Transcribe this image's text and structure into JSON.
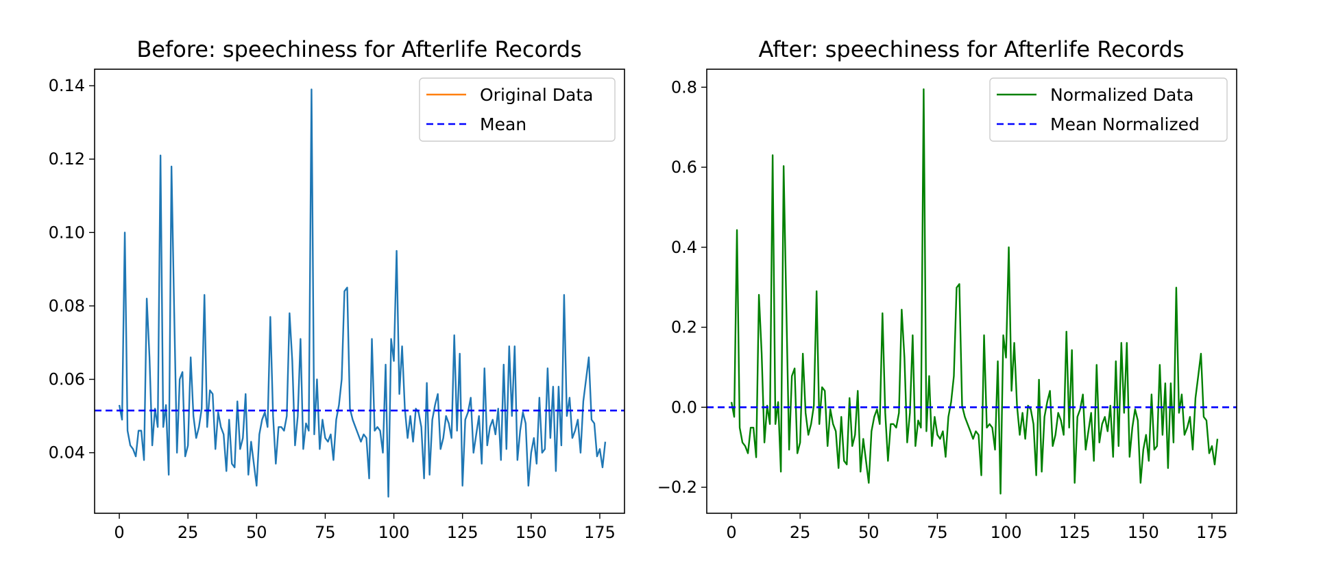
{
  "chart_data": [
    {
      "type": "line",
      "title": "Before: speechiness for Afterlife Records",
      "xlabel": "",
      "ylabel": "",
      "xlim": [
        -9,
        184
      ],
      "ylim": [
        0.0235,
        0.1445
      ],
      "xticks": [
        0,
        25,
        50,
        75,
        100,
        125,
        150,
        175
      ],
      "xtick_labels": [
        "0",
        "25",
        "50",
        "75",
        "100",
        "125",
        "150",
        "175"
      ],
      "yticks": [
        0.04,
        0.06,
        0.08,
        0.1,
        0.12,
        0.14
      ],
      "ytick_labels": [
        "0.04",
        "0.06",
        "0.08",
        "0.10",
        "0.12",
        "0.14"
      ],
      "series": [
        {
          "name": "Original Data",
          "color": "#1f77b4",
          "legend_color": "#ff7f0e",
          "style": "solid",
          "values": [
            0.053,
            0.049,
            0.1,
            0.046,
            0.042,
            0.041,
            0.039,
            0.046,
            0.046,
            0.038,
            0.082,
            0.066,
            0.042,
            0.052,
            0.047,
            0.121,
            0.047,
            0.053,
            0.034,
            0.118,
            0.078,
            0.04,
            0.06,
            0.062,
            0.039,
            0.042,
            0.066,
            0.05,
            0.044,
            0.047,
            0.052,
            0.083,
            0.047,
            0.057,
            0.056,
            0.041,
            0.051,
            0.047,
            0.045,
            0.035,
            0.049,
            0.037,
            0.036,
            0.054,
            0.041,
            0.044,
            0.056,
            0.034,
            0.043,
            0.037,
            0.031,
            0.045,
            0.049,
            0.051,
            0.047,
            0.077,
            0.05,
            0.037,
            0.047,
            0.047,
            0.046,
            0.05,
            0.078,
            0.065,
            0.042,
            0.05,
            0.071,
            0.041,
            0.048,
            0.046,
            0.139,
            0.045,
            0.06,
            0.041,
            0.049,
            0.044,
            0.043,
            0.045,
            0.038,
            0.049,
            0.053,
            0.06,
            0.084,
            0.085,
            0.052,
            0.049,
            0.047,
            0.045,
            0.043,
            0.045,
            0.044,
            0.033,
            0.071,
            0.046,
            0.047,
            0.046,
            0.04,
            0.064,
            0.028,
            0.071,
            0.065,
            0.095,
            0.056,
            0.069,
            0.052,
            0.044,
            0.05,
            0.043,
            0.052,
            0.051,
            0.047,
            0.033,
            0.059,
            0.034,
            0.049,
            0.053,
            0.056,
            0.041,
            0.044,
            0.05,
            0.048,
            0.044,
            0.072,
            0.046,
            0.067,
            0.031,
            0.049,
            0.051,
            0.055,
            0.04,
            0.045,
            0.05,
            0.037,
            0.063,
            0.042,
            0.047,
            0.049,
            0.045,
            0.052,
            0.038,
            0.064,
            0.041,
            0.069,
            0.05,
            0.069,
            0.038,
            0.046,
            0.051,
            0.048,
            0.031,
            0.04,
            0.044,
            0.037,
            0.055,
            0.04,
            0.041,
            0.063,
            0.044,
            0.058,
            0.035,
            0.058,
            0.042,
            0.083,
            0.05,
            0.055,
            0.044,
            0.046,
            0.049,
            0.04,
            0.054,
            0.06,
            0.066,
            0.049,
            0.048,
            0.039,
            0.041,
            0.036,
            0.043
          ]
        },
        {
          "name": "Mean",
          "color": "#0000ff",
          "style": "dashed",
          "values": [
            0.0515
          ]
        }
      ],
      "legend_position": "upper right"
    },
    {
      "type": "line",
      "title": "After: speechiness for Afterlife Records",
      "xlabel": "",
      "ylabel": "",
      "xlim": [
        -9,
        184
      ],
      "ylim": [
        -0.265,
        0.845
      ],
      "xticks": [
        0,
        25,
        50,
        75,
        100,
        125,
        150,
        175
      ],
      "xtick_labels": [
        "0",
        "25",
        "50",
        "75",
        "100",
        "125",
        "150",
        "175"
      ],
      "yticks": [
        -0.2,
        0.0,
        0.2,
        0.4,
        0.6,
        0.8
      ],
      "ytick_labels": [
        "−0.2",
        "0.0",
        "0.2",
        "0.4",
        "0.6",
        "0.8"
      ],
      "series": [
        {
          "name": "Normalized Data",
          "color": "#008000",
          "style": "solid",
          "values": [
            0.013,
            -0.024,
            0.443,
            -0.051,
            -0.088,
            -0.097,
            -0.115,
            -0.051,
            -0.051,
            -0.125,
            0.281,
            0.134,
            -0.088,
            0.004,
            -0.042,
            0.63,
            -0.042,
            0.013,
            -0.161,
            0.603,
            0.244,
            -0.106,
            0.078,
            0.097,
            -0.115,
            -0.088,
            0.134,
            -0.014,
            -0.069,
            -0.042,
            0.004,
            0.29,
            -0.042,
            0.05,
            0.041,
            -0.097,
            -0.005,
            -0.042,
            -0.06,
            -0.152,
            -0.024,
            -0.134,
            -0.143,
            0.023,
            -0.097,
            -0.069,
            0.041,
            -0.161,
            -0.079,
            -0.134,
            -0.189,
            -0.06,
            -0.024,
            -0.005,
            -0.042,
            0.235,
            -0.014,
            -0.134,
            -0.042,
            -0.042,
            -0.051,
            -0.014,
            0.244,
            0.124,
            -0.088,
            -0.014,
            0.18,
            -0.097,
            -0.033,
            -0.051,
            0.795,
            -0.06,
            0.078,
            -0.097,
            -0.024,
            -0.069,
            -0.079,
            -0.06,
            -0.124,
            -0.024,
            0.013,
            0.078,
            0.299,
            0.308,
            0.004,
            -0.024,
            -0.042,
            -0.06,
            -0.079,
            -0.06,
            -0.069,
            -0.17,
            0.18,
            -0.051,
            -0.042,
            -0.051,
            -0.106,
            0.115,
            -0.216,
            0.18,
            0.124,
            0.4,
            0.041,
            0.161,
            0.004,
            -0.069,
            -0.014,
            -0.079,
            0.004,
            -0.005,
            -0.042,
            -0.17,
            0.069,
            -0.161,
            -0.024,
            0.013,
            0.041,
            -0.097,
            -0.069,
            -0.014,
            -0.033,
            -0.069,
            0.189,
            -0.051,
            0.143,
            -0.189,
            -0.024,
            -0.005,
            0.032,
            -0.106,
            -0.06,
            -0.014,
            -0.134,
            0.106,
            -0.088,
            -0.042,
            -0.024,
            -0.06,
            0.004,
            -0.124,
            0.115,
            -0.097,
            0.161,
            -0.014,
            0.161,
            -0.124,
            -0.051,
            -0.005,
            -0.033,
            -0.189,
            -0.106,
            -0.069,
            -0.134,
            0.032,
            -0.106,
            -0.097,
            0.106,
            -0.069,
            0.06,
            -0.152,
            0.06,
            -0.088,
            0.299,
            -0.014,
            0.032,
            -0.069,
            -0.051,
            -0.024,
            -0.106,
            0.023,
            0.078,
            0.134,
            -0.024,
            -0.033,
            -0.115,
            -0.097,
            -0.143,
            -0.079
          ]
        },
        {
          "name": "Mean Normalized",
          "color": "#0000ff",
          "style": "dashed",
          "values": [
            0.0
          ]
        }
      ],
      "legend_position": "upper right"
    }
  ]
}
